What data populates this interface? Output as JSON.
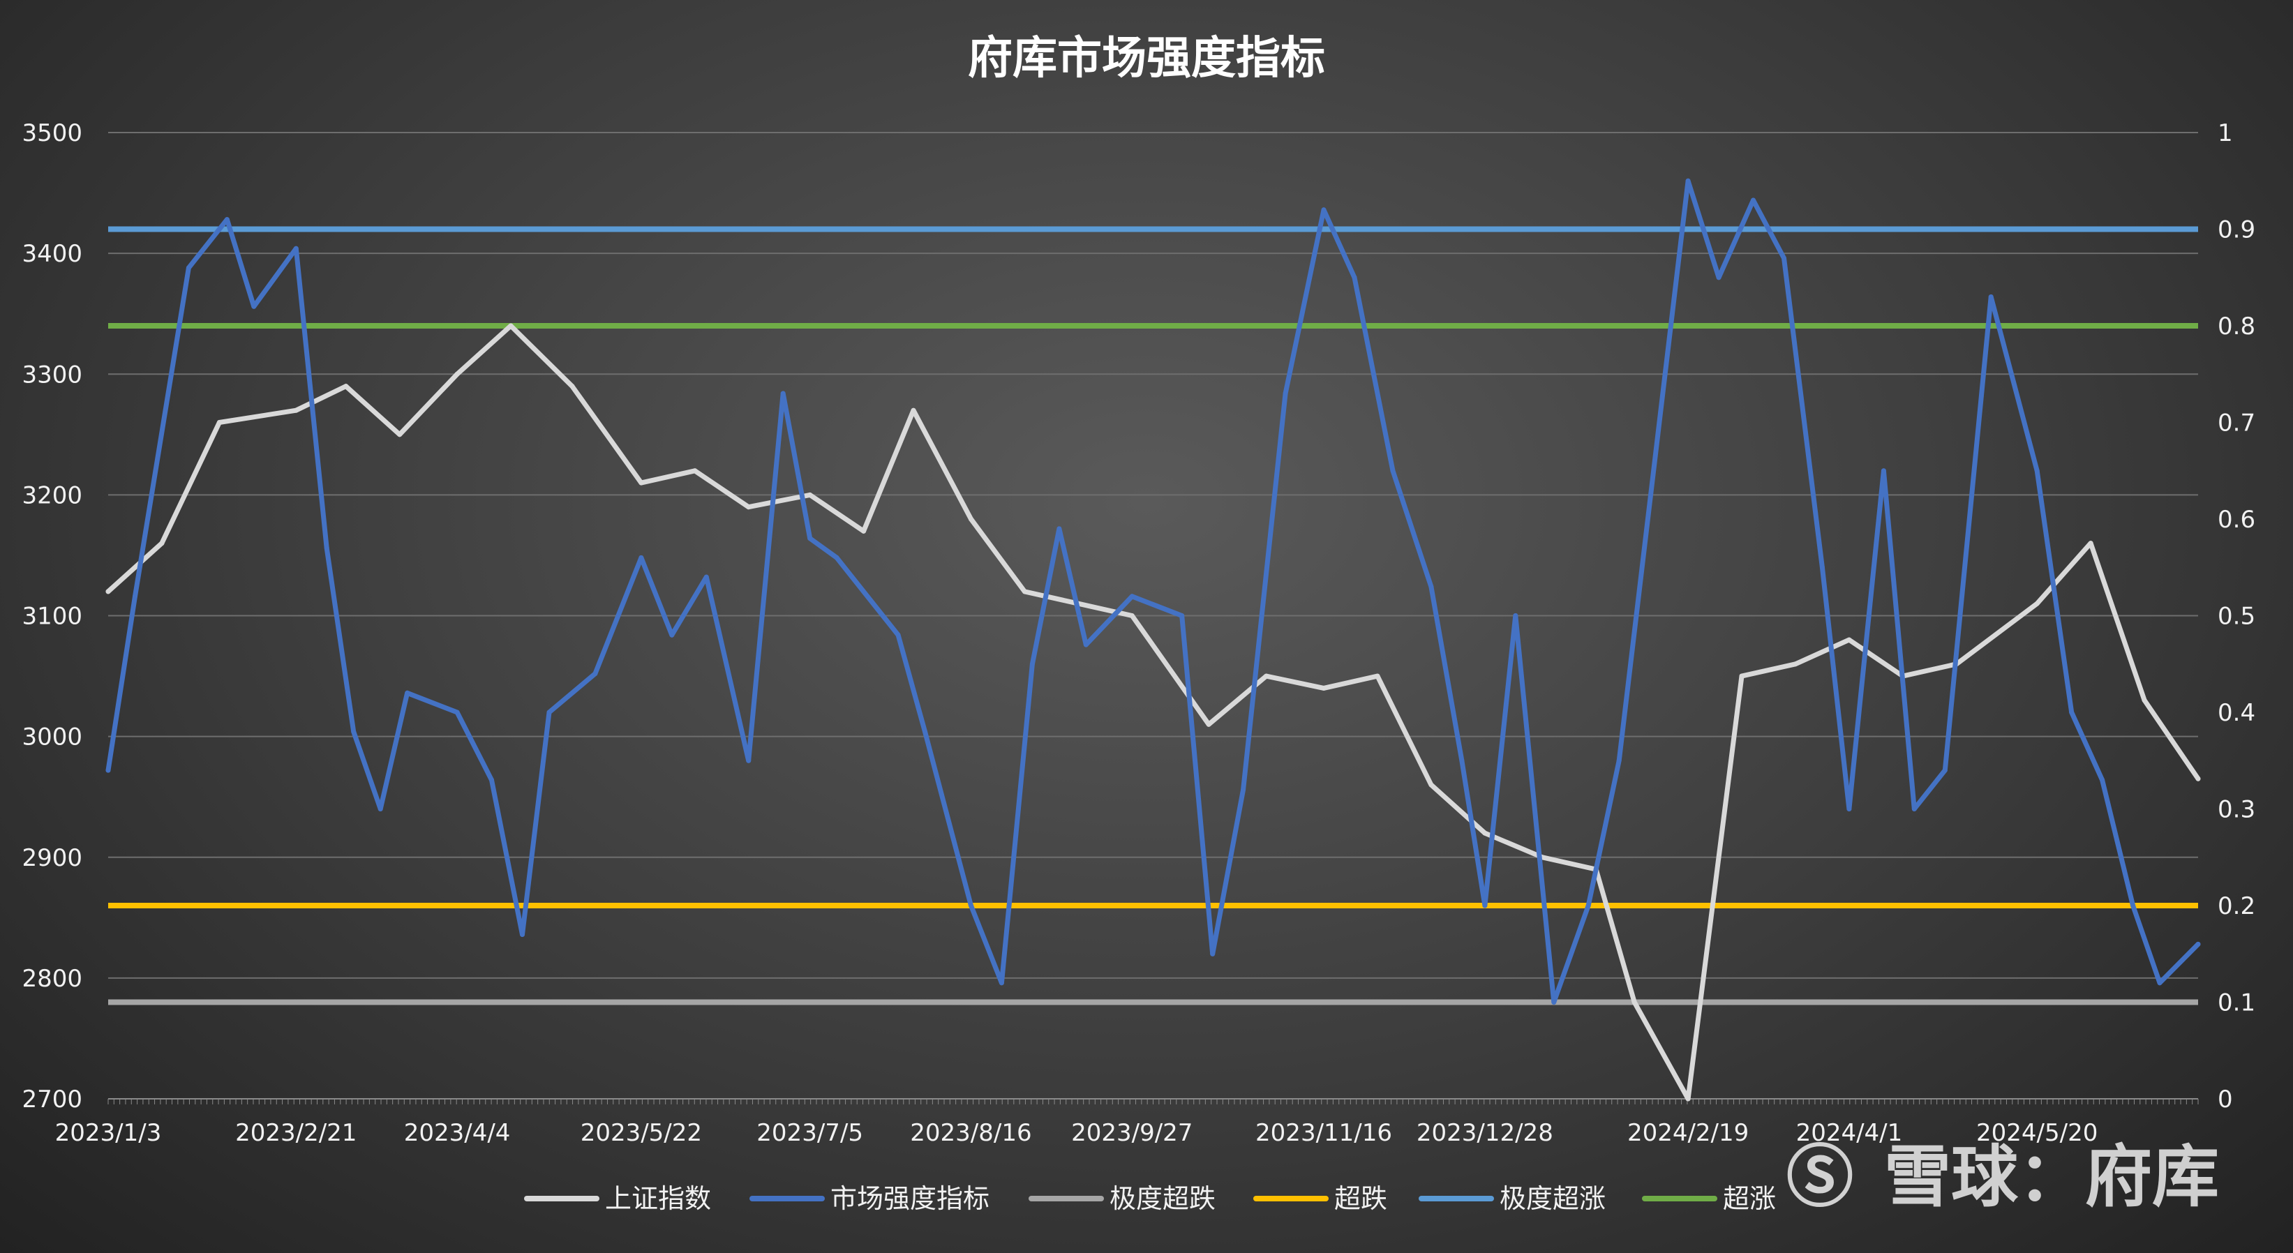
{
  "chart_data": {
    "type": "line",
    "title": "府库市场强度指标",
    "x_tick_labels": [
      "2023/1/3",
      "2023/2/21",
      "2023/4/4",
      "2023/5/22",
      "2023/7/5",
      "2023/8/16",
      "2023/9/27",
      "2023/11/16",
      "2023/12/28",
      "2024/2/19",
      "2024/4/1",
      "2024/5/20"
    ],
    "y_left": {
      "range": [
        2700,
        3500
      ],
      "ticks": [
        2700,
        2800,
        2900,
        3000,
        3100,
        3200,
        3300,
        3400,
        3500
      ]
    },
    "y_right": {
      "range": [
        0,
        1
      ],
      "ticks": [
        "0",
        "0.1",
        "0.2",
        "0.3",
        "0.4",
        "0.5",
        "0.6",
        "0.7",
        "0.8",
        "0.9",
        "1"
      ]
    },
    "grid": true,
    "legend_position": "bottom",
    "series": [
      {
        "name": "上证指数",
        "axis": "left",
        "color": "#d9d9d9",
        "x": [
          "2023/1/3",
          "2023/1/17",
          "2023/2/1",
          "2023/2/21",
          "2023/3/6",
          "2023/3/20",
          "2023/4/4",
          "2023/4/18",
          "2023/5/4",
          "2023/5/22",
          "2023/6/5",
          "2023/6/19",
          "2023/7/5",
          "2023/7/19",
          "2023/8/1",
          "2023/8/16",
          "2023/8/30",
          "2023/9/13",
          "2023/9/27",
          "2023/10/17",
          "2023/11/1",
          "2023/11/16",
          "2023/11/30",
          "2023/12/14",
          "2023/12/28",
          "2024/1/12",
          "2024/1/26",
          "2024/2/5",
          "2024/2/19",
          "2024/3/4",
          "2024/3/18",
          "2024/4/1",
          "2024/4/15",
          "2024/4/29",
          "2024/5/20",
          "2024/6/3",
          "2024/6/17",
          "2024/7/1"
        ],
        "values": [
          3120,
          3160,
          3260,
          3270,
          3290,
          3250,
          3300,
          3340,
          3290,
          3210,
          3220,
          3190,
          3200,
          3170,
          3270,
          3180,
          3120,
          3110,
          3100,
          3010,
          3050,
          3040,
          3050,
          2960,
          2920,
          2900,
          2890,
          2780,
          2700,
          3050,
          3060,
          3080,
          3050,
          3060,
          3110,
          3160,
          3030,
          2965
        ]
      },
      {
        "name": "市场强度指标",
        "axis": "right",
        "color": "#4472c4",
        "x": [
          "2023/1/3",
          "2023/1/10",
          "2023/1/24",
          "2023/2/3",
          "2023/2/10",
          "2023/2/21",
          "2023/3/1",
          "2023/3/8",
          "2023/3/15",
          "2023/3/22",
          "2023/4/4",
          "2023/4/13",
          "2023/4/21",
          "2023/4/28",
          "2023/5/10",
          "2023/5/22",
          "2023/5/30",
          "2023/6/8",
          "2023/6/19",
          "2023/6/28",
          "2023/7/5",
          "2023/7/12",
          "2023/7/20",
          "2023/7/28",
          "2023/8/4",
          "2023/8/16",
          "2023/8/24",
          "2023/9/1",
          "2023/9/8",
          "2023/9/15",
          "2023/9/27",
          "2023/10/10",
          "2023/10/18",
          "2023/10/26",
          "2023/11/6",
          "2023/11/16",
          "2023/11/24",
          "2023/12/4",
          "2023/12/14",
          "2023/12/22",
          "2023/12/28",
          "2024/1/5",
          "2024/1/15",
          "2024/1/24",
          "2024/2/1",
          "2024/2/19",
          "2024/2/27",
          "2024/3/7",
          "2024/3/15",
          "2024/3/25",
          "2024/4/1",
          "2024/4/10",
          "2024/4/18",
          "2024/4/26",
          "2024/5/8",
          "2024/5/20",
          "2024/5/29",
          "2024/6/6",
          "2024/6/14",
          "2024/6/21",
          "2024/7/1"
        ],
        "values": [
          0.34,
          0.52,
          0.86,
          0.91,
          0.82,
          0.88,
          0.57,
          0.38,
          0.3,
          0.42,
          0.4,
          0.33,
          0.17,
          0.4,
          0.44,
          0.56,
          0.48,
          0.54,
          0.35,
          0.73,
          0.58,
          0.56,
          0.52,
          0.48,
          0.38,
          0.2,
          0.12,
          0.45,
          0.59,
          0.47,
          0.52,
          0.5,
          0.15,
          0.32,
          0.73,
          0.92,
          0.85,
          0.65,
          0.53,
          0.35,
          0.2,
          0.5,
          0.1,
          0.2,
          0.35,
          0.95,
          0.85,
          0.93,
          0.87,
          0.55,
          0.3,
          0.65,
          0.3,
          0.34,
          0.83,
          0.65,
          0.4,
          0.33,
          0.2,
          0.12,
          0.16
        ]
      },
      {
        "name": "极度超跌",
        "axis": "right",
        "color": "#a6a6a6",
        "values": [
          0.1
        ]
      },
      {
        "name": "超跌",
        "axis": "right",
        "color": "#ffc000",
        "values": [
          0.2
        ]
      },
      {
        "name": "极度超涨",
        "axis": "right",
        "color": "#5b9bd5",
        "values": [
          0.9
        ]
      },
      {
        "name": "超涨",
        "axis": "right",
        "color": "#70ad47",
        "values": [
          0.8
        ]
      }
    ]
  },
  "watermark": {
    "symbol": "Ⓢ",
    "text": "雪球：府库"
  }
}
